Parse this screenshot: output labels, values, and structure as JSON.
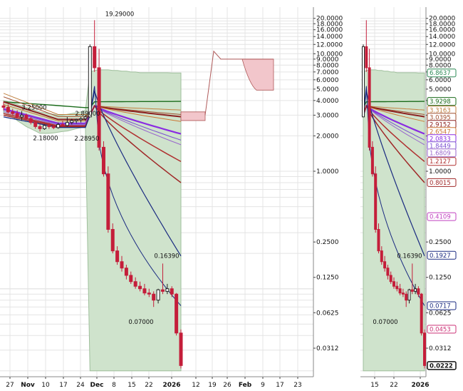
{
  "chart_data": {
    "type": "candlestick",
    "y_scale": "log",
    "grid": true,
    "main_panel": {
      "x_labels": [
        {
          "text": "27",
          "major": false
        },
        {
          "text": "Nov",
          "major": true
        },
        {
          "text": "10",
          "major": false
        },
        {
          "text": "17",
          "major": false
        },
        {
          "text": "24",
          "major": false
        },
        {
          "text": "Dec",
          "major": true
        },
        {
          "text": "8",
          "major": false
        },
        {
          "text": "15",
          "major": false
        },
        {
          "text": "22",
          "major": false
        },
        {
          "text": "2026",
          "major": true
        },
        {
          "text": "12",
          "major": false
        },
        {
          "text": "19",
          "major": false
        },
        {
          "text": "26",
          "major": false
        },
        {
          "text": "Feb",
          "major": true
        },
        {
          "text": "9",
          "major": false
        },
        {
          "text": "17",
          "major": false
        },
        {
          "text": "23",
          "major": false
        }
      ],
      "y_ticks": [
        "20.0000",
        "18.0000",
        "16.0000",
        "14.0000",
        "12.0000",
        "10.0000",
        "9.0000",
        "8.0000",
        "7.0000",
        "6.0000",
        "5.0000",
        "4.0000",
        "3.0000",
        "2.0000",
        "1.0000",
        "0.2500",
        "0.1250",
        "0.0625",
        "0.0312"
      ],
      "y_tick_values": [
        20,
        18,
        16,
        14,
        12,
        10,
        9,
        8,
        7,
        6,
        5,
        4,
        3,
        2,
        1,
        0.25,
        0.125,
        0.0625,
        0.0312
      ],
      "annotations": [
        {
          "text": "19.29000",
          "value": 19.29
        },
        {
          "text": "3.25000",
          "value": 3.25
        },
        {
          "text": "2.89000",
          "value": 2.89
        },
        {
          "text": "2.18000",
          "value": 2.18
        },
        {
          "text": "2.28950",
          "value": 2.2895
        },
        {
          "text": "0.16390",
          "value": 0.1639
        },
        {
          "text": "0.07000",
          "value": 0.07
        }
      ],
      "candles": [
        [
          3.6,
          3.9,
          3.3,
          3.5
        ],
        [
          3.5,
          3.7,
          3.1,
          3.2
        ],
        [
          3.2,
          3.4,
          3.0,
          3.1
        ],
        [
          3.1,
          3.3,
          2.8,
          2.9
        ],
        [
          2.9,
          3.25,
          2.7,
          3.0
        ],
        [
          3.0,
          3.1,
          2.7,
          2.8
        ],
        [
          2.8,
          2.9,
          2.5,
          2.6
        ],
        [
          2.6,
          2.7,
          2.3,
          2.4
        ],
        [
          2.4,
          2.5,
          2.18,
          2.3
        ],
        [
          2.3,
          2.5,
          2.25,
          2.45
        ],
        [
          2.45,
          2.6,
          2.3,
          2.4
        ],
        [
          2.4,
          2.5,
          2.28,
          2.35
        ],
        [
          2.35,
          2.6,
          2.3,
          2.5
        ],
        [
          2.5,
          2.7,
          2.4,
          2.45
        ],
        [
          2.45,
          2.89,
          2.4,
          2.6
        ],
        [
          2.6,
          2.8,
          2.5,
          2.7
        ],
        [
          2.7,
          2.8,
          2.55,
          2.75
        ],
        [
          2.75,
          2.9,
          2.6,
          2.8
        ],
        [
          2.8,
          3.0,
          2.7,
          2.9
        ],
        [
          2.9,
          12.0,
          2.9,
          11.5
        ],
        [
          11.5,
          19.29,
          7.0,
          7.6
        ],
        [
          7.6,
          11.0,
          1.5,
          1.6
        ],
        [
          1.6,
          1.8,
          0.9,
          0.95
        ],
        [
          0.95,
          1.1,
          0.3,
          0.32
        ],
        [
          0.32,
          0.36,
          0.2,
          0.21
        ],
        [
          0.21,
          0.23,
          0.16,
          0.17
        ],
        [
          0.17,
          0.19,
          0.14,
          0.15
        ],
        [
          0.15,
          0.16,
          0.12,
          0.13
        ],
        [
          0.13,
          0.14,
          0.11,
          0.115
        ],
        [
          0.115,
          0.125,
          0.1,
          0.105
        ],
        [
          0.105,
          0.115,
          0.095,
          0.1
        ],
        [
          0.1,
          0.11,
          0.088,
          0.092
        ],
        [
          0.092,
          0.1,
          0.085,
          0.09
        ],
        [
          0.09,
          0.095,
          0.07,
          0.08
        ],
        [
          0.08,
          0.1,
          0.075,
          0.098
        ],
        [
          0.098,
          0.1639,
          0.09,
          0.095
        ],
        [
          0.095,
          0.11,
          0.09,
          0.1
        ],
        [
          0.1,
          0.105,
          0.085,
          0.09
        ],
        [
          0.09,
          0.092,
          0.04,
          0.042
        ],
        [
          0.042,
          0.045,
          0.021,
          0.0222
        ]
      ]
    },
    "side_panel": {
      "x_labels": [
        {
          "text": "15",
          "major": false
        },
        {
          "text": "22",
          "major": false
        },
        {
          "text": "2026",
          "major": true
        }
      ],
      "y_ticks": [
        "20.0000",
        "18.0000",
        "16.0000",
        "14.0000",
        "12.0000",
        "10.0000",
        "9.0000",
        "8.0000",
        "7.0000",
        "6.0000",
        "5.0000",
        "4.0000",
        "3.0000",
        "2.0000",
        "1.0000",
        "0.2500",
        "0.1250",
        "0.0625",
        "0.0312"
      ],
      "y_tick_values": [
        20,
        18,
        16,
        14,
        12,
        10,
        9,
        8,
        7,
        6,
        5,
        4,
        3,
        2,
        1,
        0.25,
        0.125,
        0.0625,
        0.0312
      ],
      "annotations": [
        {
          "text": "0.16390",
          "value": 0.1639
        },
        {
          "text": "0.07000",
          "value": 0.07
        }
      ],
      "value_tags": [
        {
          "text": "6.8637",
          "value": 6.8637,
          "color": "#2e8b57"
        },
        {
          "text": "3.9298",
          "value": 3.9298,
          "color": "#1a6b1a"
        },
        {
          "text": "3.3163",
          "value": 3.3163,
          "color": "#c08040"
        },
        {
          "text": "3.0395",
          "value": 3.0395,
          "color": "#a05030"
        },
        {
          "text": "2.9152",
          "value": 2.9152,
          "color": "#8b2020"
        },
        {
          "text": "2.6547",
          "value": 2.6547,
          "color": "#cc7733"
        },
        {
          "text": "2.0833",
          "value": 2.0833,
          "color": "#8a2be2"
        },
        {
          "text": "1.8449",
          "value": 1.8449,
          "color": "#7a4fd0"
        },
        {
          "text": "1.6809",
          "value": 1.6809,
          "color": "#9966cc"
        },
        {
          "text": "1.2127",
          "value": 1.2127,
          "color": "#b03030"
        },
        {
          "text": "0.8015",
          "value": 0.8015,
          "color": "#a02828"
        },
        {
          "text": "0.4109",
          "value": 0.4109,
          "color": "#c040c0"
        },
        {
          "text": "0.1927",
          "value": 0.1927,
          "color": "#1a2a80"
        },
        {
          "text": "0.0717",
          "value": 0.0717,
          "color": "#1a2a80"
        },
        {
          "text": "0.0453",
          "value": 0.0453,
          "color": "#cc3377"
        },
        {
          "text": "0.0222",
          "value": 0.0222,
          "color": "#111111"
        }
      ]
    },
    "colors": {
      "up": "#ffffff",
      "down": "#c41e3a",
      "band_fill": "#cfe3cc",
      "band_edge": "#9fbf9c",
      "cloud_fill": "#f2c6cb",
      "cloud_edge": "#b05a5a",
      "grid": "#e4e4e4"
    }
  }
}
